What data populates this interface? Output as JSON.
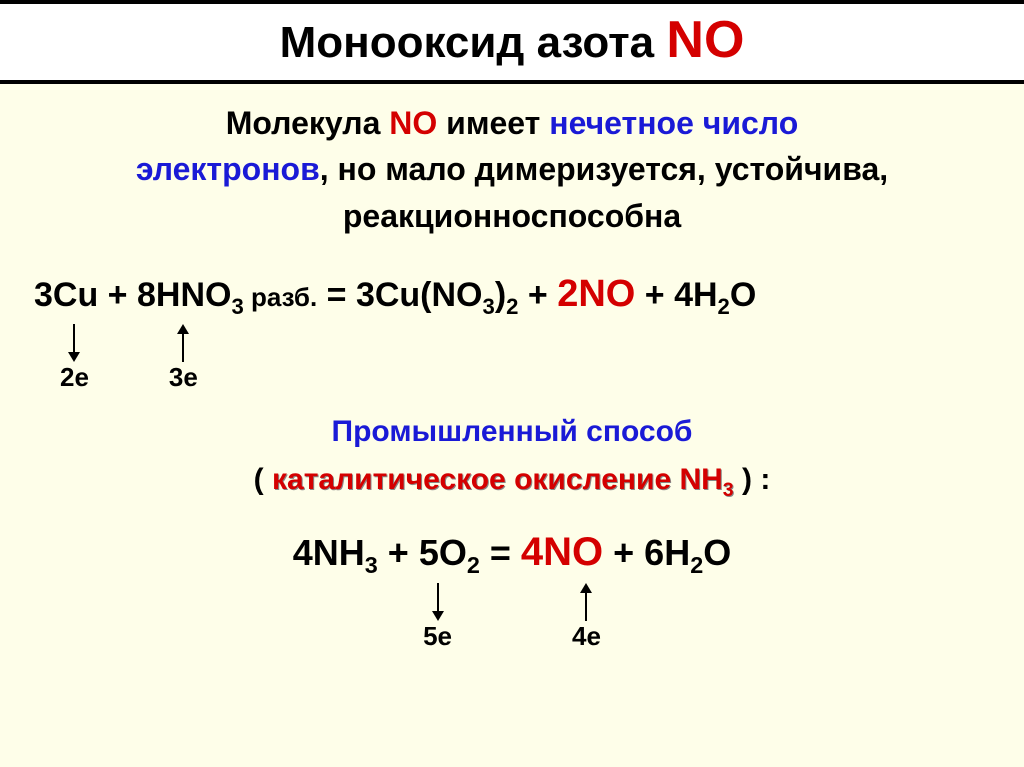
{
  "title": {
    "text_black": "Монооксид азота ",
    "text_red": "NO",
    "black_color": "#000000",
    "red_color": "#d40000",
    "bg_color": "#ffffff",
    "border_color": "#000000",
    "fontsize_black": 44,
    "fontsize_red": 52
  },
  "page_bg": "#fefee9",
  "intro": {
    "line1_pre": "Молекула ",
    "line1_NO": "NO",
    "line1_mid": "   имеет ",
    "line1_hl": "нечетное число",
    "line2_pre": "электронов",
    "line2_rest": ", но мало димеризуется, устойчива,",
    "line3": "реакционноспособна",
    "blue_color": "#1a1ad6",
    "red_color": "#d40000",
    "fontsize": 32
  },
  "eq1": {
    "seg1": "3Cu + 8HNO",
    "sub1": "3",
    "razb": " разб.",
    "seg2": " = 3Cu(NO",
    "sub2": "3",
    "seg3": ")",
    "sub3": "2",
    "seg4": " + ",
    "coef": "2NO",
    "seg5": " + 4H",
    "sub4": "2",
    "seg6": "O",
    "e_left": "2e",
    "e_right": "3e",
    "fontsize": 34,
    "coef_color": "#d40000"
  },
  "industrial": {
    "heading": "Промышленный способ",
    "cat_open": "( ",
    "cat_text": "каталитическое окисление NH",
    "cat_sub": "3",
    "cat_close": " ) :",
    "blue_color": "#1a1ad6",
    "red_color": "#d40000",
    "fontsize": 30
  },
  "eq2": {
    "seg1": "4NH",
    "sub1": "3",
    "seg2": " + 5O",
    "sub2": "2",
    "seg3": " = ",
    "coef": "4NO",
    "seg4": " + 6H",
    "sub3": "2",
    "seg5": "O",
    "e_left": "5e",
    "e_right": "4e",
    "fontsize": 36,
    "coef_color": "#d40000"
  }
}
